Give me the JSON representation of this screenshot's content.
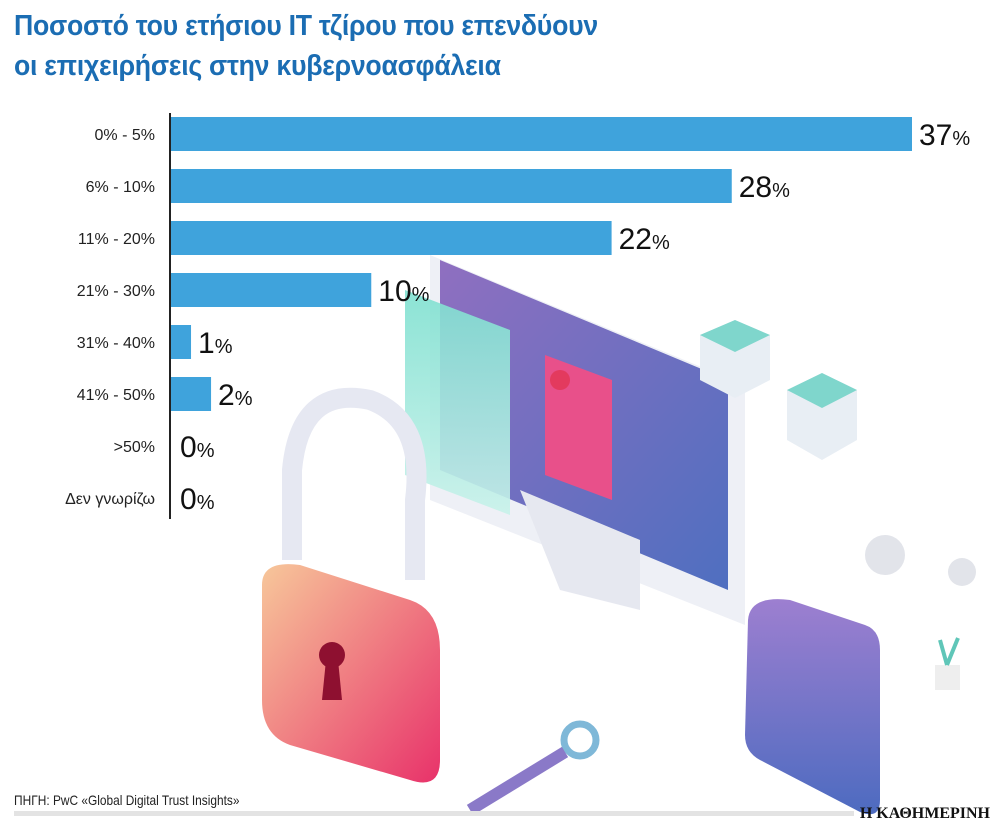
{
  "title_lines": [
    "Ποσοστό του ετήσιου IT τζίρου που επενδύουν",
    "οι επιχειρήσεις στην κυβερνοασφάλεια"
  ],
  "source": "ΠΗΓΗ: PwC «Global Digital Trust Insights»",
  "logo": "Η ΚΑΘΗΜΕΡΙΝΗ",
  "colors": {
    "title": "#1b6db3",
    "bar": "#3fa3dc",
    "axis": "#222222"
  },
  "chart_data": {
    "type": "bar",
    "orientation": "horizontal",
    "title": "Ποσοστό του ετήσιου IT τζίρου που επενδύουν οι επιχειρήσεις στην κυβερνοασφάλεια",
    "categories": [
      "0% - 5%",
      "6% - 10%",
      "11% - 20%",
      "21% - 30%",
      "31% - 40%",
      "41% - 50%",
      ">50%",
      "Δεν γνωρίζω"
    ],
    "values": [
      37,
      28,
      22,
      10,
      1,
      2,
      0,
      0
    ],
    "unit": "%",
    "xlim": [
      0,
      37
    ],
    "grid": false,
    "legend": "none"
  }
}
